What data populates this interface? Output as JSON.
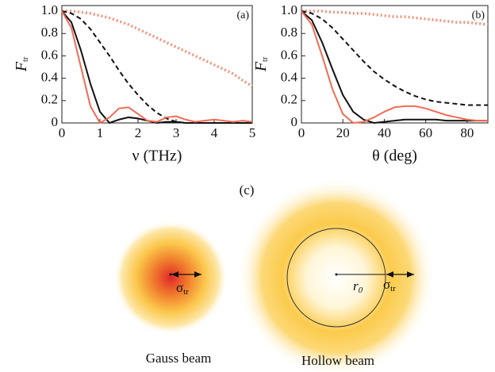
{
  "chart_data": [
    {
      "type": "line",
      "annotation": "(a)",
      "ylabel": "F",
      "ylabel_sub": "tr",
      "xlabel": "ν (THz)",
      "x": [
        0,
        0.25,
        0.5,
        0.75,
        1,
        1.25,
        1.5,
        1.75,
        2,
        2.25,
        2.5,
        2.75,
        3,
        3.25,
        3.5,
        3.75,
        4,
        4.25,
        4.5,
        4.75,
        5
      ],
      "xlim": [
        0,
        5
      ],
      "xticks": [
        0,
        1,
        2,
        3,
        4,
        5
      ],
      "ylim": [
        0,
        1.05
      ],
      "yticks": [
        0,
        0.2,
        0.4,
        0.6,
        0.8,
        {
          "value": 1,
          "label": "1.0"
        }
      ],
      "series": [
        {
          "color": "#f5907a",
          "style": "dotted",
          "values": [
            1.0,
            1.0,
            0.99,
            0.98,
            0.96,
            0.94,
            0.91,
            0.88,
            0.84,
            0.8,
            0.76,
            0.72,
            0.68,
            0.64,
            0.6,
            0.56,
            0.52,
            0.48,
            0.44,
            0.38,
            0.33
          ]
        },
        {
          "color": "#111111",
          "style": "dashed",
          "values": [
            1.0,
            0.98,
            0.93,
            0.84,
            0.72,
            0.6,
            0.47,
            0.35,
            0.25,
            0.16,
            0.09,
            0.04,
            0.01,
            0,
            0,
            0,
            0,
            0,
            0,
            0,
            0
          ]
        },
        {
          "color": "#111111",
          "style": "solid",
          "values": [
            1.0,
            0.9,
            0.65,
            0.35,
            0.1,
            0,
            0.03,
            0.05,
            0.04,
            0.02,
            0,
            0.01,
            0.01,
            0,
            0,
            0,
            0,
            0,
            0,
            0,
            0
          ]
        },
        {
          "color": "#f26b55",
          "style": "solid",
          "values": [
            1.0,
            0.85,
            0.5,
            0.15,
            0,
            0.05,
            0.13,
            0.14,
            0.08,
            0.02,
            0.01,
            0.05,
            0.06,
            0.03,
            0.01,
            0.02,
            0.03,
            0.02,
            0.01,
            0.02,
            0.01
          ]
        }
      ]
    },
    {
      "type": "line",
      "annotation": "(b)",
      "ylabel": "F",
      "ylabel_sub": "tr",
      "xlabel": "θ (deg)",
      "x": [
        0,
        5,
        10,
        15,
        20,
        25,
        30,
        35,
        40,
        45,
        50,
        55,
        60,
        65,
        70,
        75,
        80,
        85,
        90
      ],
      "xlim": [
        0,
        90
      ],
      "xticks": [
        0,
        20,
        40,
        60,
        80
      ],
      "ylim": [
        0,
        1.05
      ],
      "yticks": [
        0,
        0.2,
        0.4,
        0.6,
        0.8,
        {
          "value": 1,
          "label": "1.0"
        }
      ],
      "series": [
        {
          "color": "#f5907a",
          "style": "dotted",
          "values": [
            1,
            1,
            1,
            0.99,
            0.99,
            0.98,
            0.98,
            0.97,
            0.96,
            0.95,
            0.95,
            0.94,
            0.93,
            0.92,
            0.91,
            0.9,
            0.9,
            0.89,
            0.88
          ]
        },
        {
          "color": "#111111",
          "style": "dashed",
          "values": [
            1,
            0.98,
            0.93,
            0.85,
            0.75,
            0.65,
            0.55,
            0.46,
            0.39,
            0.33,
            0.28,
            0.24,
            0.21,
            0.19,
            0.18,
            0.17,
            0.16,
            0.16,
            0.16
          ]
        },
        {
          "color": "#111111",
          "style": "solid",
          "values": [
            1,
            0.92,
            0.72,
            0.48,
            0.25,
            0.1,
            0.03,
            0,
            0.01,
            0.02,
            0.03,
            0.03,
            0.03,
            0.03,
            0.02,
            0.02,
            0.02,
            0.02,
            0.02
          ]
        },
        {
          "color": "#f26b55",
          "style": "solid",
          "values": [
            1,
            0.88,
            0.6,
            0.3,
            0.08,
            0,
            0.01,
            0.05,
            0.1,
            0.14,
            0.15,
            0.15,
            0.13,
            0.1,
            0.07,
            0.05,
            0.03,
            0.02,
            0.02
          ]
        }
      ]
    }
  ],
  "diagram": {
    "panel_label": "(c)",
    "gauss": {
      "label": "Gauss beam",
      "sigma": "σ",
      "sigma_sub": "tr"
    },
    "hollow": {
      "label": "Hollow beam",
      "r": "r",
      "r_sub": "0",
      "sigma": "σ",
      "sigma_sub": "tr"
    }
  }
}
